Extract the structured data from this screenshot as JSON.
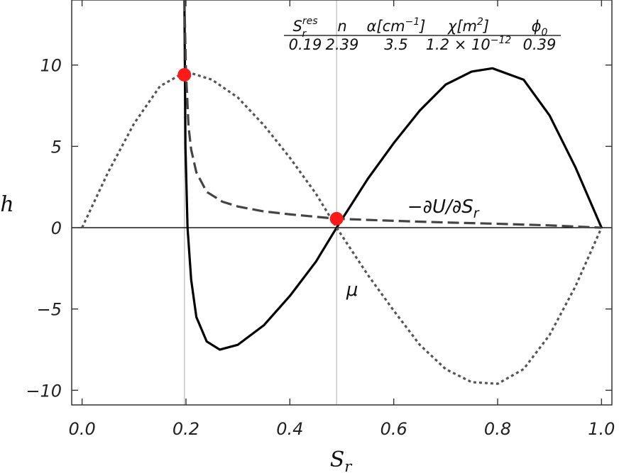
{
  "chart_data": {
    "type": "line",
    "xlabel": "S",
    "xlabel_sub": "r",
    "ylabel": "h",
    "xlim": [
      -0.02,
      1.02
    ],
    "ylim": [
      -10.9,
      14
    ],
    "xticks": [
      0.0,
      0.2,
      0.4,
      0.6,
      0.8,
      1.0
    ],
    "xtick_labels": [
      "0.0",
      "0.2",
      "0.4",
      "0.6",
      "0.8",
      "1.0"
    ],
    "yticks": [
      -10,
      -5,
      0,
      5,
      10
    ],
    "ytick_labels": [
      "−10",
      "−5",
      "0",
      "5",
      "10"
    ],
    "grid": false,
    "vertical_lines": [
      0.197,
      0.49
    ],
    "series": [
      {
        "style": "solid",
        "color": "#000000",
        "x": [
          0.197,
          0.199,
          0.203,
          0.21,
          0.22,
          0.24,
          0.265,
          0.3,
          0.35,
          0.4,
          0.45,
          0.49,
          0.55,
          0.6,
          0.65,
          0.7,
          0.75,
          0.79,
          0.85,
          0.9,
          0.95,
          1.0
        ],
        "y": [
          14,
          5,
          0,
          -3.2,
          -5.5,
          -7,
          -7.5,
          -7.2,
          -6,
          -4.2,
          -2.1,
          0,
          3,
          5.2,
          7.2,
          8.8,
          9.6,
          9.8,
          9.1,
          6.9,
          3.7,
          0
        ]
      },
      {
        "style": "dashed",
        "color": "#444444",
        "x": [
          0.197,
          0.2,
          0.205,
          0.21,
          0.22,
          0.24,
          0.27,
          0.3,
          0.35,
          0.4,
          0.49,
          0.6,
          0.7,
          0.8,
          0.9,
          1.0
        ],
        "y": [
          14,
          9.6,
          6.2,
          4.8,
          3.4,
          2.2,
          1.6,
          1.3,
          1.0,
          0.82,
          0.55,
          0.42,
          0.32,
          0.24,
          0.14,
          0.0
        ]
      },
      {
        "style": "dotted",
        "color": "#555555",
        "x": [
          0.0,
          0.05,
          0.1,
          0.15,
          0.2,
          0.25,
          0.3,
          0.35,
          0.4,
          0.45,
          0.49,
          0.55,
          0.6,
          0.65,
          0.7,
          0.75,
          0.8,
          0.85,
          0.9,
          0.95,
          1.0
        ],
        "y": [
          0,
          3.4,
          6.4,
          8.7,
          9.6,
          9.1,
          8.0,
          6.3,
          4.3,
          2.1,
          0,
          -2.9,
          -5.1,
          -7.2,
          -8.7,
          -9.5,
          -9.6,
          -8.7,
          -6.6,
          -3.6,
          0
        ]
      }
    ],
    "points": [
      {
        "x": 0.197,
        "y": 9.4,
        "color": "#ff1a1a"
      },
      {
        "x": 0.49,
        "y": 0.55,
        "color": "#ff1a1a"
      }
    ],
    "annotations": [
      {
        "text": "−∂U/∂S",
        "sub": "r",
        "x": 0.695,
        "y": 1.3
      },
      {
        "text": "μ",
        "x": 0.52,
        "y": -3.8
      }
    ],
    "parameter_table": {
      "headers": [
        {
          "main": "S",
          "sup": "res",
          "sub": "r"
        },
        {
          "main": "n"
        },
        {
          "main": "α[cm",
          "sup": "−1",
          "tail": "]"
        },
        {
          "main": "χ[m",
          "sup": "2",
          "tail": "]"
        },
        {
          "main": "ϕ",
          "sub": "0"
        }
      ],
      "values": [
        {
          "main": "0.19"
        },
        {
          "main": "2.39"
        },
        {
          "main": "3.5"
        },
        {
          "main": "1.2 × 10",
          "sup": "−12"
        },
        {
          "main": "0.39"
        }
      ]
    }
  }
}
